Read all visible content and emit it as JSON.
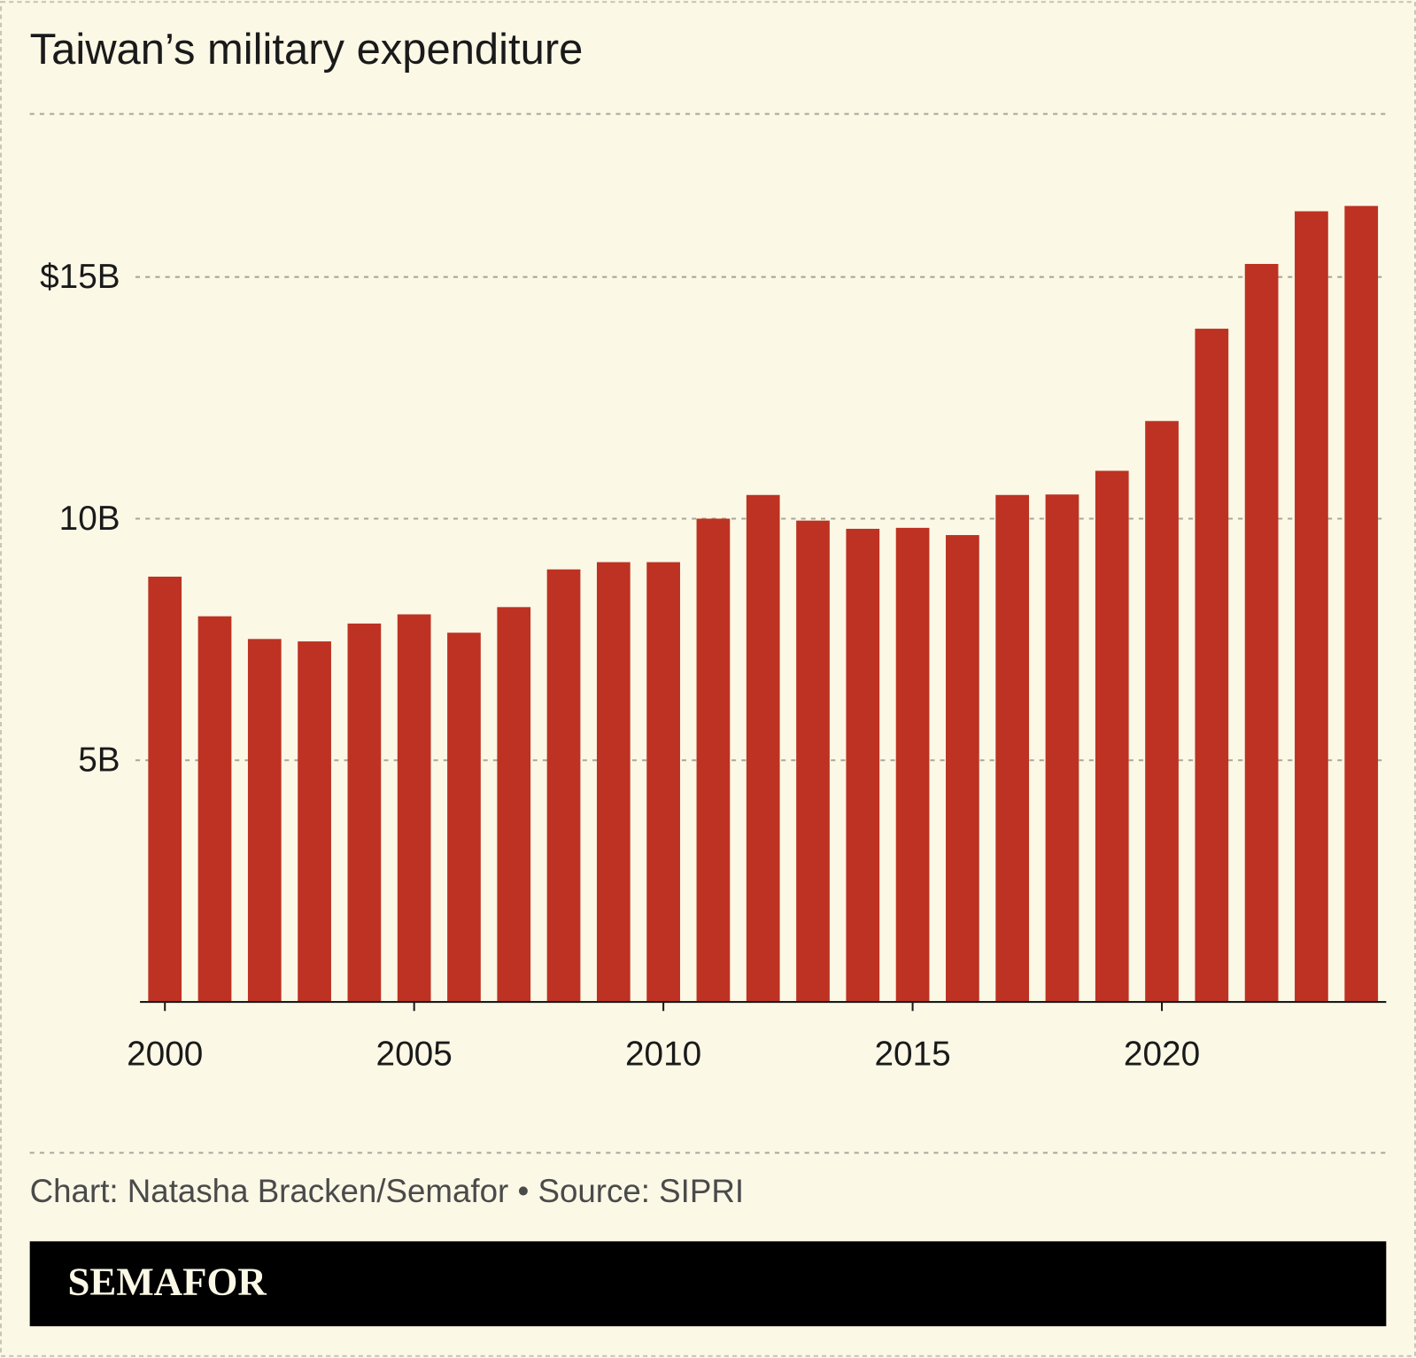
{
  "chart_data": {
    "type": "bar",
    "title": "Taiwan’s military expenditure",
    "x": [
      2000,
      2001,
      2002,
      2003,
      2004,
      2005,
      2006,
      2007,
      2008,
      2009,
      2010,
      2011,
      2012,
      2013,
      2014,
      2015,
      2016,
      2017,
      2018,
      2019,
      2020,
      2021,
      2022,
      2023,
      2024
    ],
    "values": [
      8.8,
      7.98,
      7.51,
      7.46,
      7.83,
      8.02,
      7.64,
      8.17,
      8.95,
      9.1,
      9.1,
      10.0,
      10.49,
      9.96,
      9.79,
      9.81,
      9.66,
      10.49,
      10.5,
      10.99,
      12.02,
      13.93,
      15.27,
      16.36,
      16.47
    ],
    "color": "#bd3222",
    "xlim": [
      1999.5,
      2024.5
    ],
    "xticks": [
      2000,
      2005,
      2010,
      2015,
      2020
    ],
    "ylim": [
      0,
      18
    ],
    "yticks": [
      {
        "value": 5,
        "label": "5B"
      },
      {
        "value": 10,
        "label": "10B"
      },
      {
        "value": 15,
        "label": "$15B"
      }
    ],
    "grid": true,
    "source": "Chart: Natasha Bracken/Semafor • Source: SIPRI",
    "logo": "SEMAFOR"
  }
}
